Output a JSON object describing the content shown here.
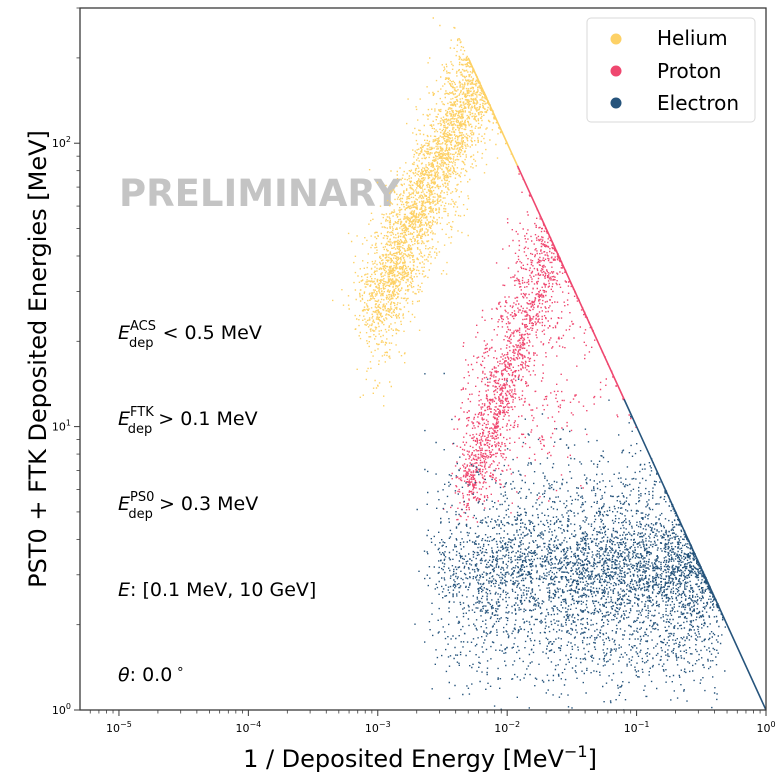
{
  "chart_data": {
    "type": "scatter",
    "title": "",
    "xlabel": "1 / Deposited Energy [MeV",
    "xlabel_sup": "−1",
    "xlabel_close": "]",
    "ylabel": "PST0 + FTK Deposited Energies [MeV]",
    "xscale": "log",
    "yscale": "log",
    "xlim": [
      5e-06,
      1
    ],
    "ylim": [
      1,
      300
    ],
    "grid": false,
    "x_ticks": [
      {
        "value": 1e-05,
        "base": "10",
        "exp": "−5"
      },
      {
        "value": 0.0001,
        "base": "10",
        "exp": "−4"
      },
      {
        "value": 0.001,
        "base": "10",
        "exp": "−3"
      },
      {
        "value": 0.01,
        "base": "10",
        "exp": "−2"
      },
      {
        "value": 0.1,
        "base": "10",
        "exp": "−1"
      },
      {
        "value": 1,
        "base": "10",
        "exp": "0"
      }
    ],
    "y_ticks": [
      {
        "value": 1,
        "base": "10",
        "exp": "0"
      },
      {
        "value": 10,
        "base": "10",
        "exp": "1"
      },
      {
        "value": 100,
        "base": "10",
        "exp": "2"
      }
    ],
    "legend": {
      "position": "top-right",
      "entries": [
        {
          "label": "Helium",
          "color": "#fdd166"
        },
        {
          "label": "Proton",
          "color": "#ef476f"
        },
        {
          "label": "Electron",
          "color": "#26547c"
        }
      ]
    },
    "series": [
      {
        "name": "Helium",
        "color": "#fdd166",
        "approx_region": {
          "x_range": [
            0.0009,
            0.006
          ],
          "y_range": [
            22,
            200
          ]
        },
        "clusters": [
          {
            "x_log_center": -2.55,
            "x_log_spread": 0.28,
            "y_log_center": 1.65,
            "y_log_spread": 0.22,
            "count": 4200
          },
          {
            "x_log_center": -2.7,
            "x_log_spread": 0.35,
            "y_log_center": 1.75,
            "y_log_spread": 0.3,
            "count": 900
          }
        ]
      },
      {
        "name": "Proton",
        "color": "#ef476f",
        "approx_region": {
          "x_range": [
            0.0035,
            0.12
          ],
          "y_range": [
            5,
            45
          ]
        },
        "clusters": [
          {
            "x_log_center": -1.85,
            "x_log_spread": 0.3,
            "y_log_center": 1.05,
            "y_log_spread": 0.28,
            "count": 3000
          },
          {
            "x_log_center": -1.7,
            "x_log_spread": 0.45,
            "y_log_center": 1.2,
            "y_log_spread": 0.35,
            "count": 700
          }
        ]
      },
      {
        "name": "Electron",
        "color": "#26547c",
        "approx_region": {
          "x_range": [
            0.001,
            1
          ],
          "y_range": [
            1,
            12
          ]
        },
        "clusters": [
          {
            "x_log_center": -1.3,
            "x_log_spread": 0.5,
            "y_log_center": 0.5,
            "y_log_spread": 0.07,
            "count": 9000
          },
          {
            "x_log_center": -1.2,
            "x_log_spread": 0.55,
            "y_log_center": 0.6,
            "y_log_spread": 0.15,
            "count": 3500
          },
          {
            "x_log_center": -1.0,
            "x_log_spread": 0.45,
            "y_log_center": 0.3,
            "y_log_spread": 0.12,
            "count": 1500
          }
        ]
      }
    ],
    "reference_line": {
      "description": "y = 1/x boundary",
      "color_upper": "#ef476f",
      "color_lower": "#26547c"
    },
    "annotations": {
      "watermark": "PRELIMINARY",
      "cuts": [
        {
          "symbol": "E",
          "sup": "ACS",
          "sub": "dep",
          "rest": " < 0.5 MeV"
        },
        {
          "symbol": "E",
          "sup": "FTK",
          "sub": "dep",
          "rest": " > 0.1 MeV"
        },
        {
          "symbol": "E",
          "sup": "PS0",
          "sub": "dep",
          "rest": " > 0.3 MeV"
        }
      ],
      "energy_range": {
        "symbol": "E",
        "rest": ": [0.1 MeV, 10 GeV]"
      },
      "angle": {
        "symbol": "θ",
        "rest": ": 0.0",
        "unit": "∘"
      }
    }
  }
}
